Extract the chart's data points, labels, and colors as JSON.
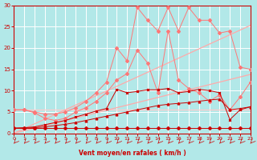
{
  "xlabel": "Vent moyen/en rafales ( km/h )",
  "xlim": [
    0,
    23
  ],
  "ylim": [
    0,
    30
  ],
  "xticks": [
    0,
    1,
    2,
    3,
    4,
    5,
    6,
    7,
    8,
    9,
    10,
    11,
    12,
    13,
    14,
    15,
    16,
    17,
    18,
    19,
    20,
    21,
    22,
    23
  ],
  "yticks": [
    0,
    5,
    10,
    15,
    20,
    25,
    30
  ],
  "bg_color": "#b2e8e8",
  "grid_color": "#ffffff",
  "x": [
    0,
    1,
    2,
    3,
    4,
    5,
    6,
    7,
    8,
    9,
    10,
    11,
    12,
    13,
    14,
    15,
    16,
    17,
    18,
    19,
    20,
    21,
    22,
    23
  ],
  "smooth1_y": [
    0.0,
    0.6,
    1.2,
    1.8,
    2.4,
    3.0,
    3.6,
    4.2,
    4.8,
    5.4,
    6.0,
    6.6,
    7.2,
    7.8,
    8.4,
    9.0,
    9.6,
    10.2,
    10.8,
    11.4,
    12.0,
    12.6,
    13.2,
    13.8
  ],
  "smooth1_color": "#ffaaaa",
  "smooth2_y": [
    0.0,
    1.1,
    2.2,
    3.3,
    4.4,
    5.5,
    6.6,
    7.7,
    8.8,
    9.9,
    11.0,
    12.1,
    13.2,
    14.3,
    15.4,
    16.5,
    17.6,
    18.7,
    19.8,
    20.9,
    22.0,
    23.1,
    24.2,
    25.3
  ],
  "smooth2_color": "#ffaaaa",
  "smooth3_y": [
    5.5,
    5.5,
    5.5,
    5.5,
    5.5,
    5.5,
    5.5,
    5.5,
    5.5,
    5.5,
    5.5,
    5.5,
    5.5,
    5.5,
    5.5,
    5.5,
    5.5,
    5.5,
    5.5,
    5.5,
    5.5,
    5.5,
    5.5,
    5.5
  ],
  "smooth3_color": "#ffcccc",
  "jagged1_y": [
    1.2,
    1.2,
    1.2,
    1.2,
    1.2,
    1.2,
    1.2,
    1.2,
    1.2,
    1.2,
    1.2,
    1.2,
    1.2,
    1.2,
    1.2,
    1.2,
    1.2,
    1.2,
    1.2,
    1.2,
    1.2,
    1.2,
    1.2,
    1.2
  ],
  "jagged1_color": "#cc0000",
  "jagged1_marker": "D",
  "jagged2_y": [
    1.2,
    1.2,
    1.3,
    1.5,
    1.8,
    2.1,
    2.5,
    3.0,
    3.5,
    4.0,
    4.5,
    5.0,
    5.5,
    6.0,
    6.5,
    6.8,
    7.0,
    7.2,
    7.5,
    7.8,
    8.0,
    5.5,
    5.8,
    6.2
  ],
  "jagged2_color": "#cc0000",
  "jagged2_marker": "^",
  "jagged3_y": [
    1.2,
    1.3,
    1.5,
    2.0,
    2.5,
    3.0,
    3.8,
    4.5,
    5.2,
    5.8,
    10.3,
    9.5,
    9.8,
    10.2,
    10.2,
    10.5,
    9.5,
    9.8,
    10.3,
    10.0,
    9.5,
    3.2,
    5.5,
    6.2
  ],
  "jagged3_color": "#cc0000",
  "jagged3_marker": "x",
  "jagged4_y": [
    5.5,
    5.5,
    4.8,
    3.5,
    3.0,
    3.5,
    5.0,
    6.0,
    7.5,
    9.5,
    12.5,
    14.0,
    19.5,
    16.5,
    9.5,
    24.0,
    12.5,
    10.5,
    9.5,
    7.5,
    9.0,
    5.5,
    8.5,
    12.0
  ],
  "jagged4_color": "#ff7777",
  "jagged4_marker": "D",
  "jagged5_y": [
    5.5,
    5.5,
    5.0,
    4.5,
    4.5,
    5.0,
    6.0,
    7.5,
    9.5,
    12.0,
    20.0,
    17.0,
    29.5,
    26.5,
    24.0,
    29.5,
    24.0,
    29.5,
    26.5,
    26.5,
    23.5,
    24.0,
    15.5,
    15.0
  ],
  "jagged5_color": "#ff7777",
  "jagged5_marker": "D"
}
